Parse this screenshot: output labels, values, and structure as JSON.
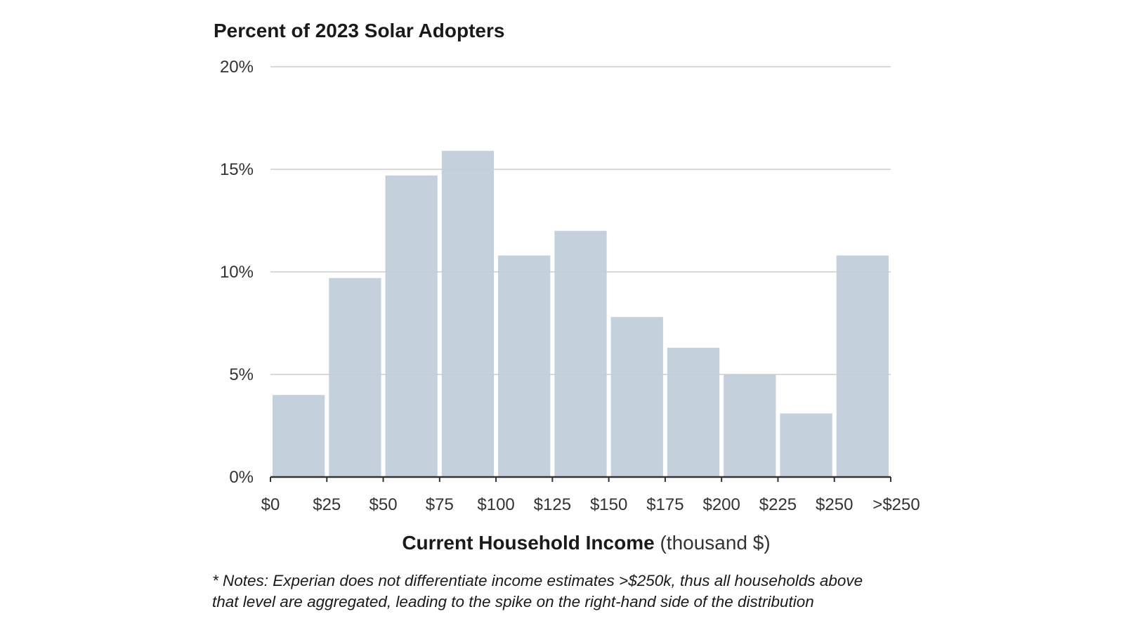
{
  "chart_data": {
    "type": "bar",
    "title": "Percent of 2023 Solar Adopters",
    "xlabel": "Current Household Income",
    "xlabel_unit": "(thousand $)",
    "ylabel": "",
    "ylim": [
      0,
      20
    ],
    "y_ticks": [
      0,
      5,
      10,
      15,
      20
    ],
    "y_tick_labels": [
      "0%",
      "5%",
      "10%",
      "15%",
      "20%"
    ],
    "x_tick_labels": [
      "$0",
      "$25",
      "$50",
      "$75",
      "$100",
      "$125",
      "$150",
      "$175",
      "$200",
      "$225",
      "$250",
      ">$250"
    ],
    "categories": [
      "$0–$25",
      "$25–$50",
      "$50–$75",
      "$75–$100",
      "$100–$125",
      "$125–$150",
      "$150–$175",
      "$175–$200",
      "$200–$225",
      "$225–$250",
      ">$250"
    ],
    "values": [
      4.0,
      9.7,
      14.7,
      15.9,
      10.8,
      12.0,
      7.8,
      6.3,
      5.0,
      3.1,
      10.8
    ],
    "grid": true,
    "legend": "none",
    "colors": {
      "bar": "#c1ccda",
      "grid": "#d9d9d9",
      "axis": "#333333",
      "text": "#1a1a1a"
    }
  },
  "footnote": {
    "line1": "* Notes: Experian does not differentiate income estimates >$250k, thus all households above",
    "line2": "that level are aggregated, leading to the spike on the right-hand side of the distribution"
  }
}
